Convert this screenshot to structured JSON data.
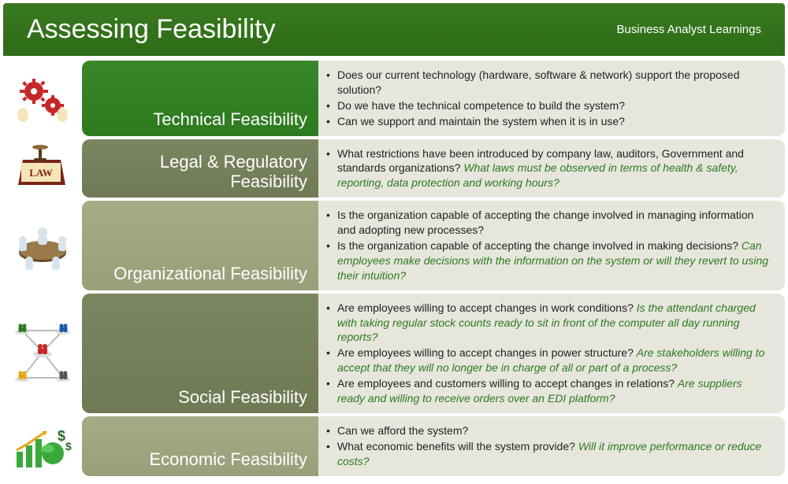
{
  "header": {
    "title": "Assessing Feasibility",
    "subtitle": "Business Analyst Learnings",
    "bg": "#2d6b17"
  },
  "rows": [
    {
      "id": "technical",
      "label": "Technical Feasibility",
      "label_bg": "#2d7a1f",
      "icon": "gears",
      "bullets": [
        [
          {
            "t": "Does our current technology (hardware, software & network) support the proposed solution?"
          }
        ],
        [
          {
            "t": "Do we have the technical competence to build the system?"
          }
        ],
        [
          {
            "t": "Can we support and maintain the system when it is in use?"
          }
        ]
      ]
    },
    {
      "id": "legal",
      "label": "Legal & Regulatory Feasibility",
      "label_bg": "#6f7a55",
      "icon": "law",
      "bullets": [
        [
          {
            "t": "What restrictions have been introduced by company law, auditors, Government and standards organizations? "
          },
          {
            "t": "What laws must be observed in terms of health & safety, reporting, data protection and working hours?",
            "em": true
          }
        ]
      ]
    },
    {
      "id": "organizational",
      "label": "Organizational Feasibility",
      "label_bg": "#98a07a",
      "icon": "meeting",
      "bullets": [
        [
          {
            "t": "Is the organization capable of accepting the change involved in managing information and adopting new processes?"
          }
        ],
        [
          {
            "t": "Is the organization capable of accepting the change involved in making decisions? "
          },
          {
            "t": "Can employees make decisions with the information on the system or will they revert to using their intuition?",
            "em": true
          }
        ]
      ]
    },
    {
      "id": "social",
      "label": "Social Feasibility",
      "label_bg": "#6f7a55",
      "icon": "network",
      "bullets": [
        [
          {
            "t": "Are employees willing to accept changes in work conditions? "
          },
          {
            "t": "Is the attendant charged with taking regular stock counts ready to sit in front of the computer all day running reports?",
            "em": true
          }
        ],
        [
          {
            "t": "Are employees willing to accept changes in power structure? "
          },
          {
            "t": "Are stakeholders willing to accept that they will no longer be in charge of all or part of a process?",
            "em": true
          }
        ],
        [
          {
            "t": "Are employees and customers willing to accept changes in relations? "
          },
          {
            "t": "Are suppliers ready and willing to receive orders over an EDI platform?",
            "em": true
          }
        ]
      ]
    },
    {
      "id": "economic",
      "label": "Economic Feasibility",
      "label_bg": "#98a07a",
      "icon": "money",
      "bullets": [
        [
          {
            "t": "Can we afford the system?"
          }
        ],
        [
          {
            "t": "What economic benefits will the system provide? "
          },
          {
            "t": "Will it improve performance or reduce costs?",
            "em": true
          }
        ]
      ]
    }
  ],
  "styling": {
    "content_bg": "#e7e6dd",
    "em_color": "#2d7a1f",
    "body_font_size": 14,
    "label_font_size": 22,
    "header_title_size": 34
  },
  "icons": {
    "gears": "gears-icon",
    "law": "law-icon",
    "meeting": "meeting-icon",
    "network": "network-icon",
    "money": "money-icon"
  }
}
